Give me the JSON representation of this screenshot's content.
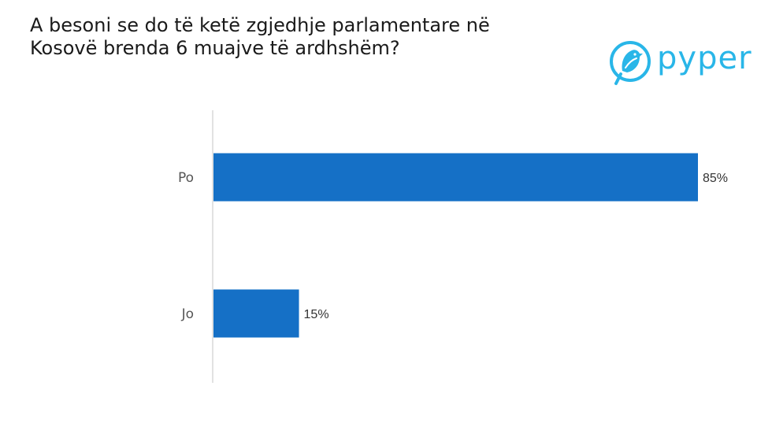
{
  "title": {
    "line1": "A besoni se do të ketë zgjedhje parlamentare në",
    "line2": "Kosovë brenda 6 muajve të ardhshëm?"
  },
  "logo": {
    "text": "pyper",
    "color": "#29b6e8"
  },
  "chart_data": {
    "type": "bar",
    "orientation": "horizontal",
    "categories": [
      "Po",
      "Jo"
    ],
    "values": [
      85,
      15
    ],
    "value_labels": [
      "85%",
      "15%"
    ],
    "xlim": [
      0,
      100
    ],
    "grid": false,
    "bar_color": "#1570c6",
    "axis_color": "#d9d9d9"
  }
}
